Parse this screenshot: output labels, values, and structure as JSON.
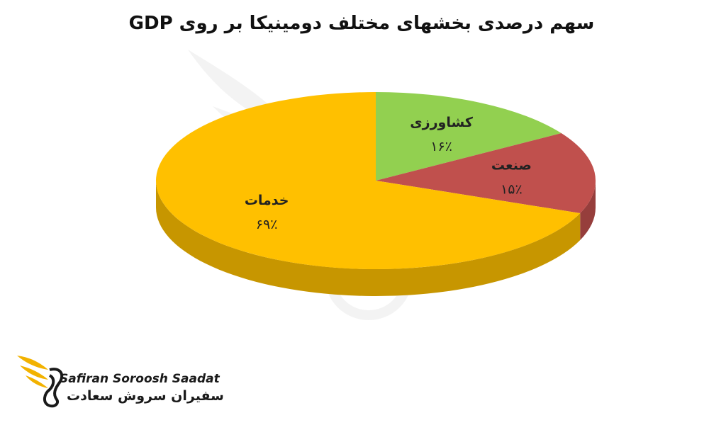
{
  "chart_data": {
    "type": "pie",
    "title": "سهم درصدی بخشهای مختلف دومینیکا بر روی  GDP",
    "slices": [
      {
        "label": "کشاورزی",
        "value_label": "۱۶٪",
        "value": 16,
        "color": "#92d050"
      },
      {
        "label": "صنعت",
        "value_label": "۱۵٪",
        "value": 15,
        "color": "#c0504d"
      },
      {
        "label": "خدمات",
        "value_label": "۶۹٪",
        "value": 69,
        "color": "#ffc000"
      }
    ],
    "legend": "none",
    "style": "3d"
  },
  "brand": {
    "name_en": "Safiran Soroosh Saadat",
    "name_fa": "سفیران سروش سعادت"
  }
}
